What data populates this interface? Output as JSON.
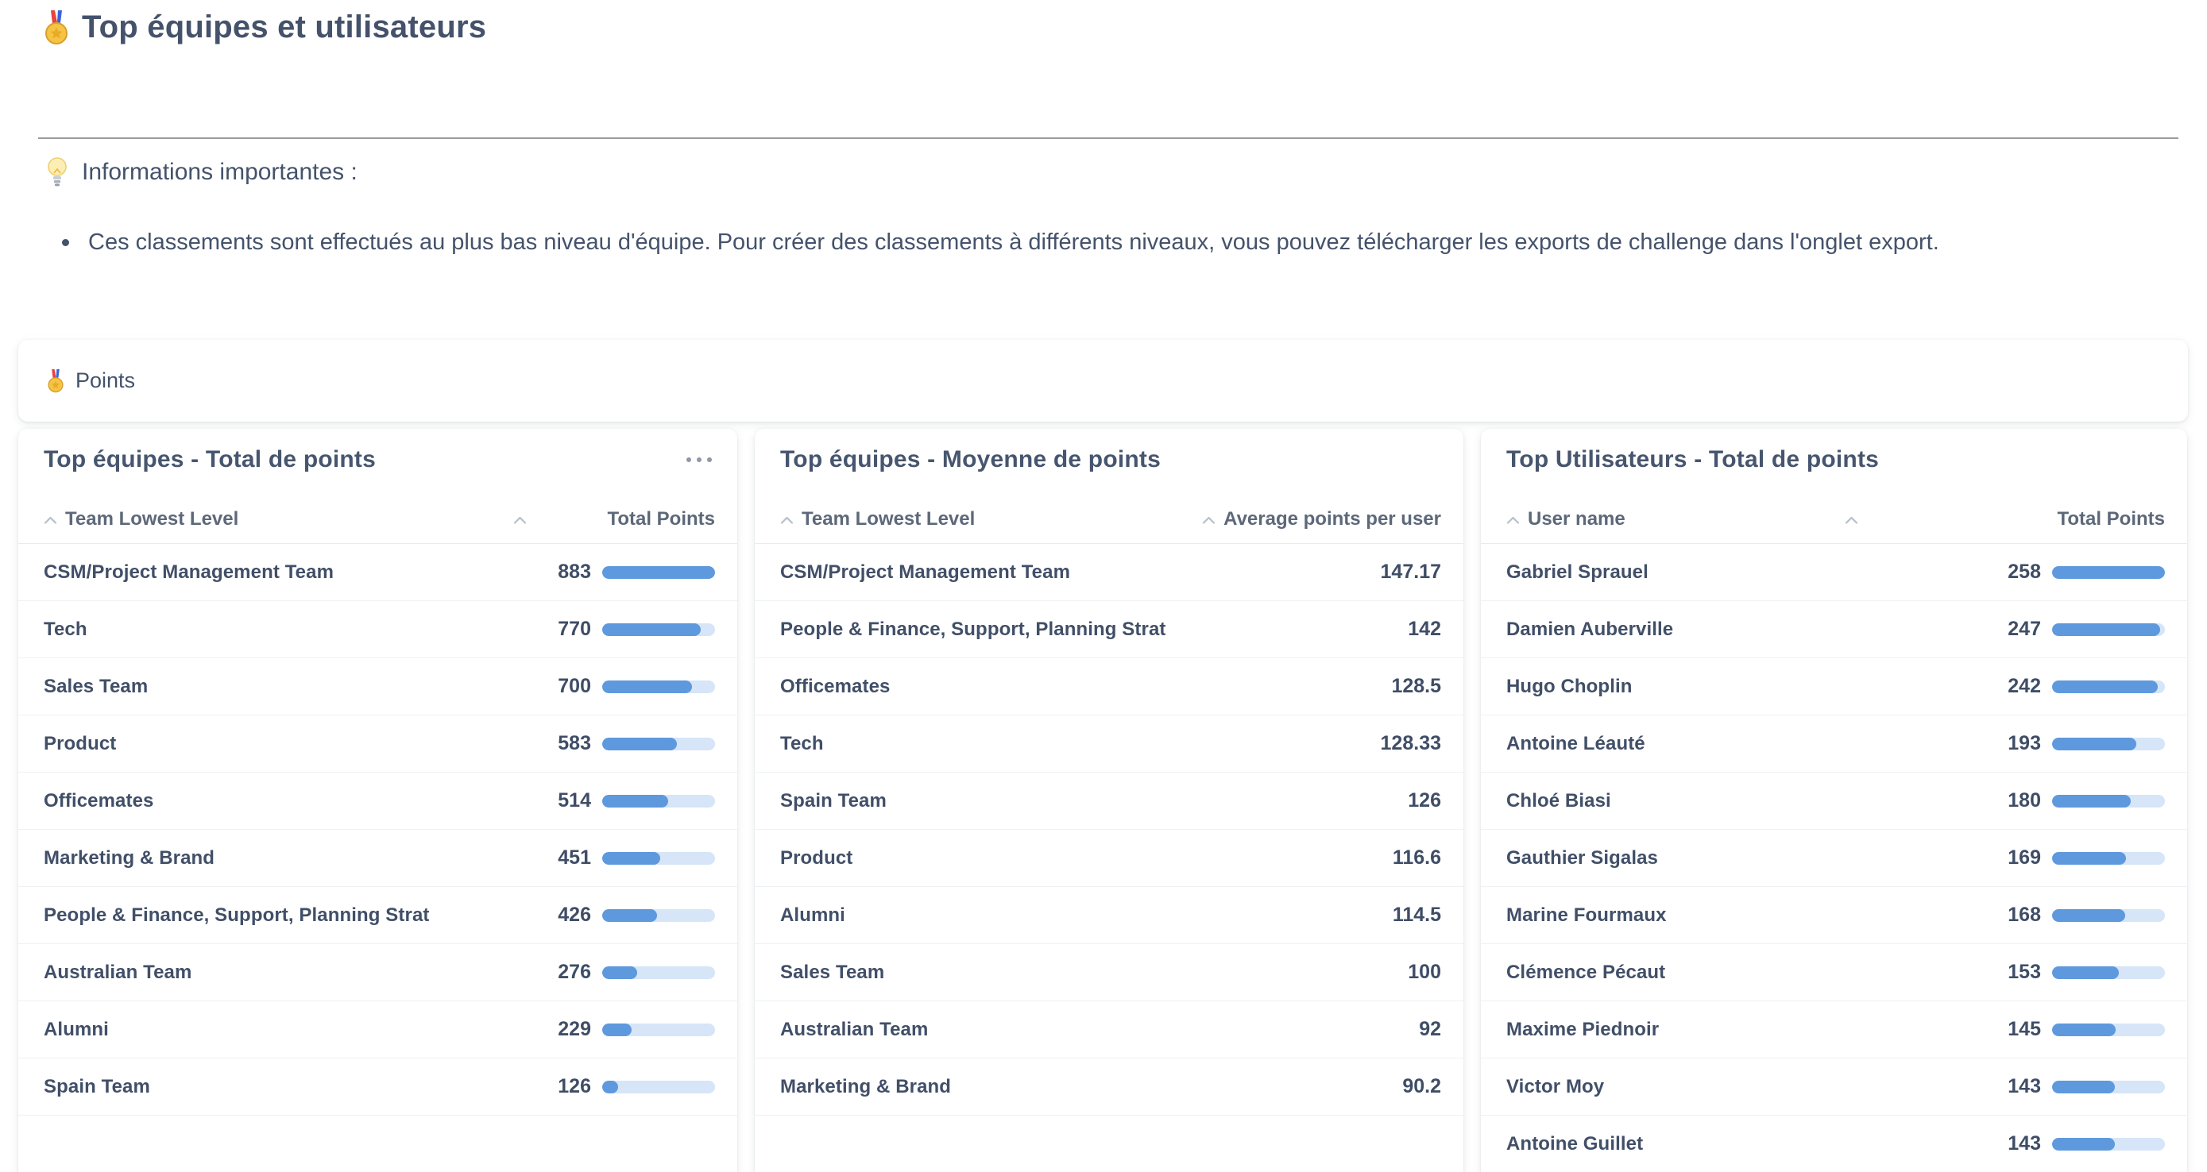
{
  "header": {
    "title": "Top équipes et utilisateurs"
  },
  "info": {
    "heading": "Informations importantes :",
    "bullet": "Ces classements sont effectués au plus bas niveau d'équipe. Pour créer des classements à différents niveaux, vous pouvez télécharger les exports de challenge dans l'onglet export."
  },
  "points_section": {
    "label": "Points"
  },
  "colors": {
    "bar_fill": "#5e99de",
    "bar_track": "#d6e5f7",
    "text": "#44526b"
  },
  "panels": [
    {
      "title": "Top équipes - Total de points",
      "col_name": "Team Lowest Level",
      "col_value": "Total Points",
      "bars": true,
      "max": 883,
      "rows": [
        {
          "name": "CSM/Project Management Team",
          "value": "883"
        },
        {
          "name": "Tech",
          "value": "770"
        },
        {
          "name": "Sales Team",
          "value": "700"
        },
        {
          "name": "Product",
          "value": "583"
        },
        {
          "name": "Officemates",
          "value": "514"
        },
        {
          "name": "Marketing & Brand",
          "value": "451"
        },
        {
          "name": "People & Finance, Support, Planning Strat",
          "value": "426"
        },
        {
          "name": "Australian Team",
          "value": "276"
        },
        {
          "name": "Alumni",
          "value": "229"
        },
        {
          "name": "Spain Team",
          "value": "126"
        }
      ]
    },
    {
      "title": "Top équipes - Moyenne de points",
      "col_name": "Team Lowest Level",
      "col_value": "Average points per user",
      "bars": false,
      "max": 147.17,
      "rows": [
        {
          "name": "CSM/Project Management Team",
          "value": "147.17"
        },
        {
          "name": "People & Finance, Support, Planning Strat",
          "value": "142"
        },
        {
          "name": "Officemates",
          "value": "128.5"
        },
        {
          "name": "Tech",
          "value": "128.33"
        },
        {
          "name": "Spain Team",
          "value": "126"
        },
        {
          "name": "Product",
          "value": "116.6"
        },
        {
          "name": "Alumni",
          "value": "114.5"
        },
        {
          "name": "Sales Team",
          "value": "100"
        },
        {
          "name": "Australian Team",
          "value": "92"
        },
        {
          "name": "Marketing & Brand",
          "value": "90.2"
        }
      ]
    },
    {
      "title": "Top Utilisateurs - Total de points",
      "col_name": "User name",
      "col_value": "Total Points",
      "bars": true,
      "max": 258,
      "rows": [
        {
          "name": "Gabriel Sprauel",
          "value": "258"
        },
        {
          "name": "Damien Auberville",
          "value": "247"
        },
        {
          "name": "Hugo Choplin",
          "value": "242"
        },
        {
          "name": "Antoine Léauté",
          "value": "193"
        },
        {
          "name": "Chloé Biasi",
          "value": "180"
        },
        {
          "name": "Gauthier Sigalas",
          "value": "169"
        },
        {
          "name": "Marine Fourmaux",
          "value": "168"
        },
        {
          "name": "Clémence Pécaut",
          "value": "153"
        },
        {
          "name": "Maxime Piednoir",
          "value": "145"
        },
        {
          "name": "Victor Moy",
          "value": "143"
        },
        {
          "name": "Antoine Guillet",
          "value": "143"
        }
      ]
    }
  ]
}
